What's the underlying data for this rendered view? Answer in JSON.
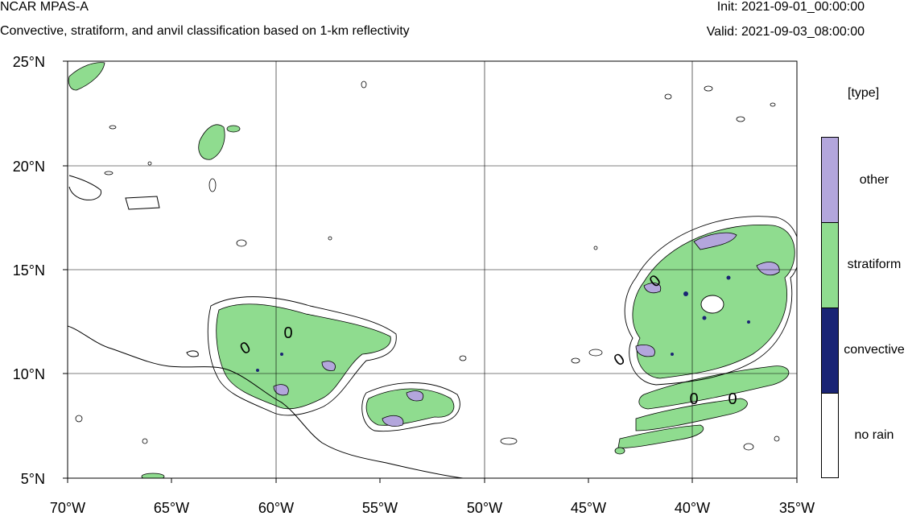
{
  "header": {
    "title": "NCAR MPAS-A",
    "subtitle": "Convective, stratiform, and anvil classification based on 1-km reflectivity",
    "init": "Init: 2021-09-01_00:00:00",
    "valid": "Valid: 2021-09-03_08:00:00"
  },
  "map": {
    "extent": {
      "lon": [
        -70,
        -35
      ],
      "lat": [
        5,
        25
      ]
    },
    "lon_labels": [
      "70°W",
      "65°W",
      "60°W",
      "55°W",
      "50°W",
      "45°W",
      "40°W",
      "35°W"
    ],
    "lat_labels": [
      "25°N",
      "20°N",
      "15°N",
      "10°N",
      "5°N"
    ],
    "contour_labels": [
      "0",
      "0",
      "0",
      "0",
      "0",
      "0"
    ]
  },
  "legend": {
    "title": "[type]",
    "items": [
      {
        "label": "other",
        "color": "#b3a6dc"
      },
      {
        "label": "stratiform",
        "color": "#8fdc8f"
      },
      {
        "label": "convective",
        "color": "#1a2474"
      },
      {
        "label": "no rain",
        "color": "#ffffff"
      }
    ]
  }
}
